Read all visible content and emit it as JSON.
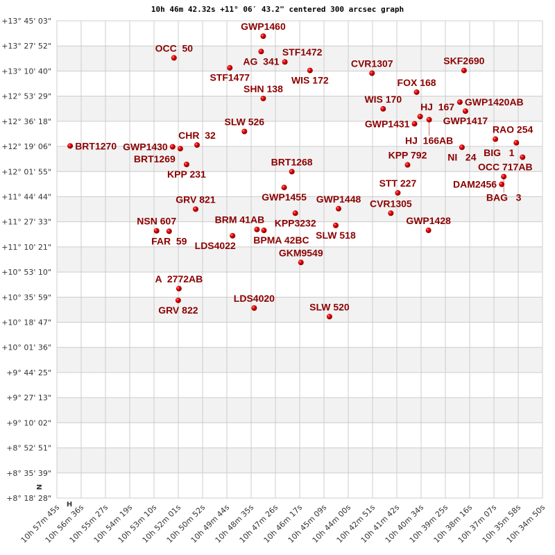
{
  "chart_data": {
    "type": "scatter",
    "title": "10h 46m 42.32s +11° 06′ 43.2\" centered 300 arcsec graph",
    "xlabel": "",
    "ylabel": "",
    "x_axis": "right ascension (decreasing to the right)",
    "xlim": [
      "10h 57m 45s",
      "10h 34m 50s"
    ],
    "ylim": [
      "+8° 18' 28\"",
      "+13° 45' 03\""
    ],
    "grid": true,
    "banded_rows": true,
    "colors": {
      "point": "#dd0000",
      "label": "#8b0000",
      "band": "#f2f2f2",
      "grid": "#cccccc"
    },
    "x_ticks": [
      "10h 57m 45s",
      "10h 56m 36s",
      "10h 55m 27s",
      "10h 54m 19s",
      "10h 53m 10s",
      "10h 52m 01s",
      "10h 50m 52s",
      "10h 49m 44s",
      "10h 48m 35s",
      "10h 47m 26s",
      "10h 46m 17s",
      "10h 45m 09s",
      "10h 44m 00s",
      "10h 42m 51s",
      "10h 41m 42s",
      "10h 40m 34s",
      "10h 39m 25s",
      "10h 38m 16s",
      "10h 37m 07s",
      "10h 35m 58s",
      "10h 34m 50s"
    ],
    "y_ticks": [
      "+13° 45' 03\"",
      "+13° 27' 52\"",
      "+13° 10' 40\"",
      "+12° 53' 29\"",
      "+12° 36' 18\"",
      "+12° 19' 06\"",
      "+12° 01' 55\"",
      "+11° 44' 44\"",
      "+11° 27' 33\"",
      "+11° 10' 21\"",
      "+10° 53' 10\"",
      "+10° 35' 59\"",
      "+10° 18' 47\"",
      "+10° 01' 36\"",
      "+9° 44' 25\"",
      "+9° 27' 13\"",
      "+9° 10' 02\"",
      "+8° 52' 51\"",
      "+8° 35' 39\"",
      "+8° 18' 28\""
    ],
    "compass": {
      "north": "N",
      "east": "H"
    },
    "points": [
      {
        "name": "GWP1460",
        "ra": "10h 48m 00.7s",
        "dec": "+13° 34' 32.6\""
      },
      {
        "name": "AG  341",
        "ra": "10h 48m 06.6s",
        "dec": "+13° 24' 02.3\""
      },
      {
        "name": "OCC  50",
        "ra": "10h 52m 13.4s",
        "dec": "+13° 19' 42.7\""
      },
      {
        "name": "STF1472",
        "ra": "10h 46m 59.5s",
        "dec": "+13° 16' 55.9\""
      },
      {
        "name": "STF1477",
        "ra": "10h 49m 35.4s",
        "dec": "+13° 12' 54.8\""
      },
      {
        "name": "WIS 172",
        "ra": "10h 45m 48.4s",
        "dec": "+13° 11' 03.6\""
      },
      {
        "name": "CVR1307",
        "ra": "10h 42m 52.8s",
        "dec": "+13° 09' 12.4\""
      },
      {
        "name": "SKF2690",
        "ra": "10h 38m 32.2s",
        "dec": "+13° 11' 03.6\""
      },
      {
        "name": "FOX 168",
        "ra": "10h 40m 46.4s",
        "dec": "+12° 56' 13.7\""
      },
      {
        "name": "SHN 138",
        "ra": "10h 48m 00.7s",
        "dec": "+12° 51' 54.1\""
      },
      {
        "name": "WIS 170",
        "ra": "10h 42m 21.2s",
        "dec": "+12° 44' 47.7\""
      },
      {
        "name": "GWP1420AB",
        "ra": "10h 38m 44.0s",
        "dec": "+12° 49' 25.8\""
      },
      {
        "name": "GWP1417",
        "ra": "10h 38m 28.2s",
        "dec": "+12° 43' 15.0\""
      },
      {
        "name": "HJ  167",
        "ra": "10h 40m 36.5s",
        "dec": "+12° 39' 32.5\""
      },
      {
        "name": "HJ  166AB",
        "ra": "10h 40m 10.9s",
        "dec": "+12° 37' 22.7\""
      },
      {
        "name": "GWP1431",
        "ra": "10h 40m 52.3s",
        "dec": "+12° 34' 35.9\""
      },
      {
        "name": "SLW 526",
        "ra": "10h 48m 54.0s",
        "dec": "+12° 29' 20.7\""
      },
      {
        "name": "RAO 254",
        "ra": "10h 37m 03.4s",
        "dec": "+12° 24' 05.5\""
      },
      {
        "name": "BIG   1",
        "ra": "10h 36m 04.1s",
        "dec": "+12° 21' 37.2\""
      },
      {
        "name": "NI   24",
        "ra": "10h 38m 38.1s",
        "dec": "+12° 18' 31.8\""
      },
      {
        "name": "OCC 717AB",
        "ra": "10h 35m 46.4s",
        "dec": "+12° 11' 43.9\""
      },
      {
        "name": "BRT1270",
        "ra": "10h 57m 07.5s",
        "dec": "+12° 19' 27.4\""
      },
      {
        "name": "GWP1430",
        "ra": "10h 52m 17.3s",
        "dec": "+12° 18' 50.3\""
      },
      {
        "name": "BRT1269",
        "ra": "10h 51m 55.6s",
        "dec": "+12° 17' 36.2\""
      },
      {
        "name": "CHR  32",
        "ra": "10h 51m 08.2s",
        "dec": "+12° 20' 04.5\""
      },
      {
        "name": "KPP 231",
        "ra": "10h 51m 37.8s",
        "dec": "+12° 06' 47.3\""
      },
      {
        "name": "KPP 792",
        "ra": "10h 41m 12.1s",
        "dec": "+12° 06' 28.7\""
      },
      {
        "name": "BRT1268",
        "ra": "10h 46m 39.8s",
        "dec": "+12° 01' 50.6\""
      },
      {
        "name": "BAG   3",
        "ra": "10h 36m 39.7s",
        "dec": "+11° 58' 26.7\""
      },
      {
        "name": "DAM2456",
        "ra": "10h 36m 45.6s",
        "dec": "+11° 53' 11.5\""
      },
      {
        "name": "GWP1455",
        "ra": "10h 47m 01.5s",
        "dec": "+11° 51' 01.7\""
      },
      {
        "name": "STT 227",
        "ra": "10h 41m 39.7s",
        "dec": "+11° 47' 19.3\""
      },
      {
        "name": "GRV 821",
        "ra": "10h 51m 12.2s",
        "dec": "+11° 36' 11.8\""
      },
      {
        "name": "GWP1448",
        "ra": "10h 44m 27.5s",
        "dec": "+11° 36' 30.4\""
      },
      {
        "name": "KPP3232",
        "ra": "10h 46m 29.9s",
        "dec": "+11° 33' 25.0\""
      },
      {
        "name": "CVR1305",
        "ra": "10h 41m 59.5s",
        "dec": "+11° 33' 25.0\""
      },
      {
        "name": "SLW 518",
        "ra": "10h 44m 35.4s",
        "dec": "+11° 25' 04.4\""
      },
      {
        "name": "GWP1428",
        "ra": "10h 40m 12.9s",
        "dec": "+11° 21' 40.4\""
      },
      {
        "name": "NSN 607",
        "ra": "10h 53m 02.7s",
        "dec": "+11° 21' 21.9\""
      },
      {
        "name": "FAR  59",
        "ra": "10h 52m 27.2s",
        "dec": "+11° 21' 03.4\""
      },
      {
        "name": "BRM 41AB",
        "ra": "10h 48m 18.5s",
        "dec": "+11° 22' 17.5\""
      },
      {
        "name": "BPMA 42BC",
        "ra": "10h 47m 58.7s",
        "dec": "+11° 21' 40.4\""
      },
      {
        "name": "LDS4022",
        "ra": "10h 49m 27.6s",
        "dec": "+11° 17' 58.0\""
      },
      {
        "name": "GKM9549",
        "ra": "10h 46m 14.1s",
        "dec": "+10° 59' 44.1\""
      },
      {
        "name": "A  2772AB",
        "ra": "10h 51m 59.5s",
        "dec": "+10° 41' 48.8\""
      },
      {
        "name": "GRV 822",
        "ra": "10h 52m 01.5s",
        "dec": "+10° 33' 46.7\""
      },
      {
        "name": "LDS4020",
        "ra": "10h 48m 26.4s",
        "dec": "+10° 28' 31.6\""
      },
      {
        "name": "SLW 520",
        "ra": "10h 44m 53.2s",
        "dec": "+10° 22' 39.3\""
      }
    ]
  }
}
